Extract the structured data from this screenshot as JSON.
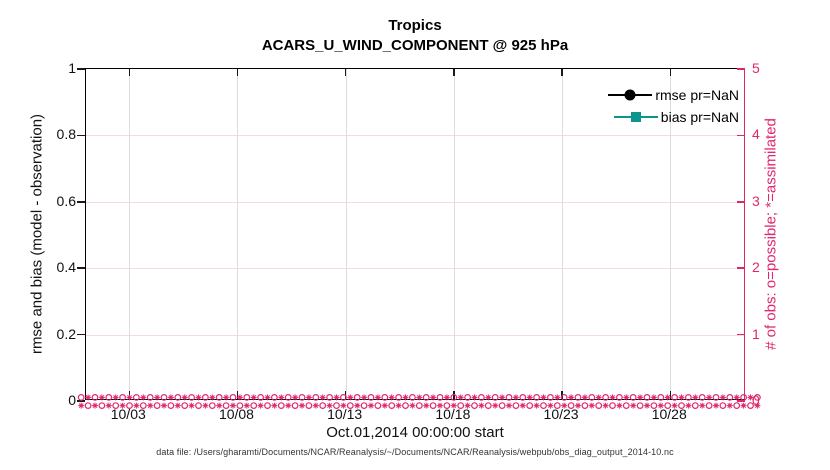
{
  "title": {
    "line1": "Tropics",
    "line2": "ACARS_U_WIND_COMPONENT @ 925 hPa"
  },
  "legend": [
    {
      "label": "rmse pr=NaN",
      "marker": "circle",
      "color": "#000000"
    },
    {
      "label": "bias pr=NaN",
      "marker": "square",
      "color": "#0d948d"
    }
  ],
  "left_axis": {
    "label": "rmse and bias (model - observation)",
    "ticks": [
      {
        "label": "0",
        "value": 0
      },
      {
        "label": "0.2",
        "value": 0.2
      },
      {
        "label": "0.4",
        "value": 0.4
      },
      {
        "label": "0.6",
        "value": 0.6
      },
      {
        "label": "0.8",
        "value": 0.8
      },
      {
        "label": "1",
        "value": 1
      }
    ],
    "range": [
      0,
      1
    ]
  },
  "right_axis": {
    "label": "# of obs: o=possible; *=assimilated",
    "ticks": [
      {
        "label": "0",
        "value": 0
      },
      {
        "label": "1",
        "value": 1
      },
      {
        "label": "2",
        "value": 2
      },
      {
        "label": "3",
        "value": 3
      },
      {
        "label": "4",
        "value": 4
      },
      {
        "label": "5",
        "value": 5
      }
    ],
    "range": [
      0,
      5
    ],
    "color": "#e0276d"
  },
  "x_axis": {
    "label": "Oct.01,2014 00:00:00 start",
    "range_days": [
      0,
      30.5
    ],
    "ticks": [
      {
        "label": "10/03",
        "day": 2
      },
      {
        "label": "10/08",
        "day": 7
      },
      {
        "label": "10/13",
        "day": 12
      },
      {
        "label": "10/18",
        "day": 17
      },
      {
        "label": "10/23",
        "day": 22
      },
      {
        "label": "10/28",
        "day": 27
      }
    ]
  },
  "footer": "data file: /Users/gharamti/Documents/NCAR/Reanalysis/~/Documents/NCAR/Reanalysis/webpub/obs_diag_output_2014-10.nc",
  "chart_data": {
    "type": "line",
    "title": "Tropics",
    "subtitle": "ACARS_U_WIND_COMPONENT @ 925 hPa",
    "xlabel": "Oct.01,2014 00:00:00 start",
    "x_range": [
      "2014-10-01 00:00:00",
      "2014-10-31"
    ],
    "x_tick_labels": [
      "10/03",
      "10/08",
      "10/13",
      "10/18",
      "10/23",
      "10/28"
    ],
    "grid": true,
    "legend_position": "upper right",
    "left": {
      "ylabel": "rmse and bias (model - observation)",
      "ylim": [
        0,
        1
      ],
      "series": [
        {
          "name": "rmse pr=NaN",
          "color": "#000000",
          "marker": "filled-circle",
          "values": "NaN — no curve plotted"
        },
        {
          "name": "bias pr=NaN",
          "color": "#0d948d",
          "marker": "filled-square",
          "values": "NaN — no curve plotted"
        }
      ]
    },
    "right": {
      "ylabel": "# of obs: o=possible; *=assimilated",
      "ylim": [
        0,
        5
      ],
      "color": "#e0276d",
      "series": [
        {
          "name": "observations possible",
          "marker": "o",
          "value_constant": 0,
          "note": "dense markers at 0 across entire x-range"
        },
        {
          "name": "observations assimilated",
          "marker": "*",
          "value_constant": 0,
          "note": "dense markers at 0 across entire x-range"
        }
      ]
    }
  }
}
